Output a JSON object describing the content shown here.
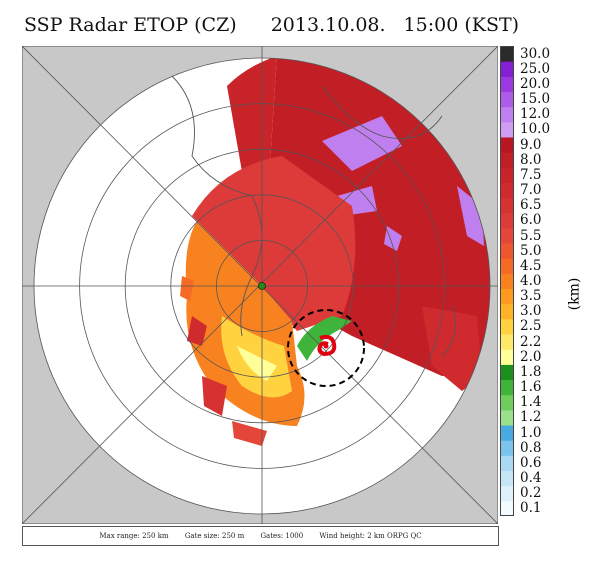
{
  "title": {
    "product": "SSP Radar ETOP (CZ)",
    "date": "2013.10.08.",
    "time": "15:00 (KST)"
  },
  "colorbar": {
    "unit": "(km)",
    "levels": [
      "0.1",
      "0.2",
      "0.4",
      "0.6",
      "0.8",
      "1.0",
      "1.2",
      "1.4",
      "1.6",
      "1.8",
      "2.0",
      "2.2",
      "2.5",
      "3.0",
      "3.5",
      "4.0",
      "4.5",
      "5.0",
      "5.5",
      "6.0",
      "6.5",
      "7.0",
      "7.5",
      "8.0",
      "9.0",
      "10.0",
      "12.0",
      "15.0",
      "20.0",
      "25.0",
      "30.0"
    ],
    "colors": [
      "#f4fbff",
      "#dff1fb",
      "#c6e6f8",
      "#a9d9f3",
      "#7cc4ec",
      "#4aa9df",
      "#9be08a",
      "#6fcd5d",
      "#3fb43a",
      "#1e8f1e",
      "#ffff99",
      "#ffe96a",
      "#ffd23f",
      "#ffb428",
      "#ff9a1e",
      "#f98220",
      "#f56a25",
      "#ee5630",
      "#e5463a",
      "#dd3a3a",
      "#d63232",
      "#cf2a2e",
      "#c8242a",
      "#c21e26",
      "#b81620",
      "#cf9ef2",
      "#c07fee",
      "#ad5ce8",
      "#9a3ae0",
      "#8420d4",
      "#2a2a2a"
    ]
  },
  "footer": {
    "max_range": "Max range: 250 km",
    "gate_size": "Gate size: 250 m",
    "gates": "Gates: 1000",
    "wind": "Wind height: 2 km ORPG QC"
  },
  "map": {
    "range_rings": 5,
    "typhoon_symbol": "typhoon-icon",
    "background_color": "#c8c8c8"
  }
}
